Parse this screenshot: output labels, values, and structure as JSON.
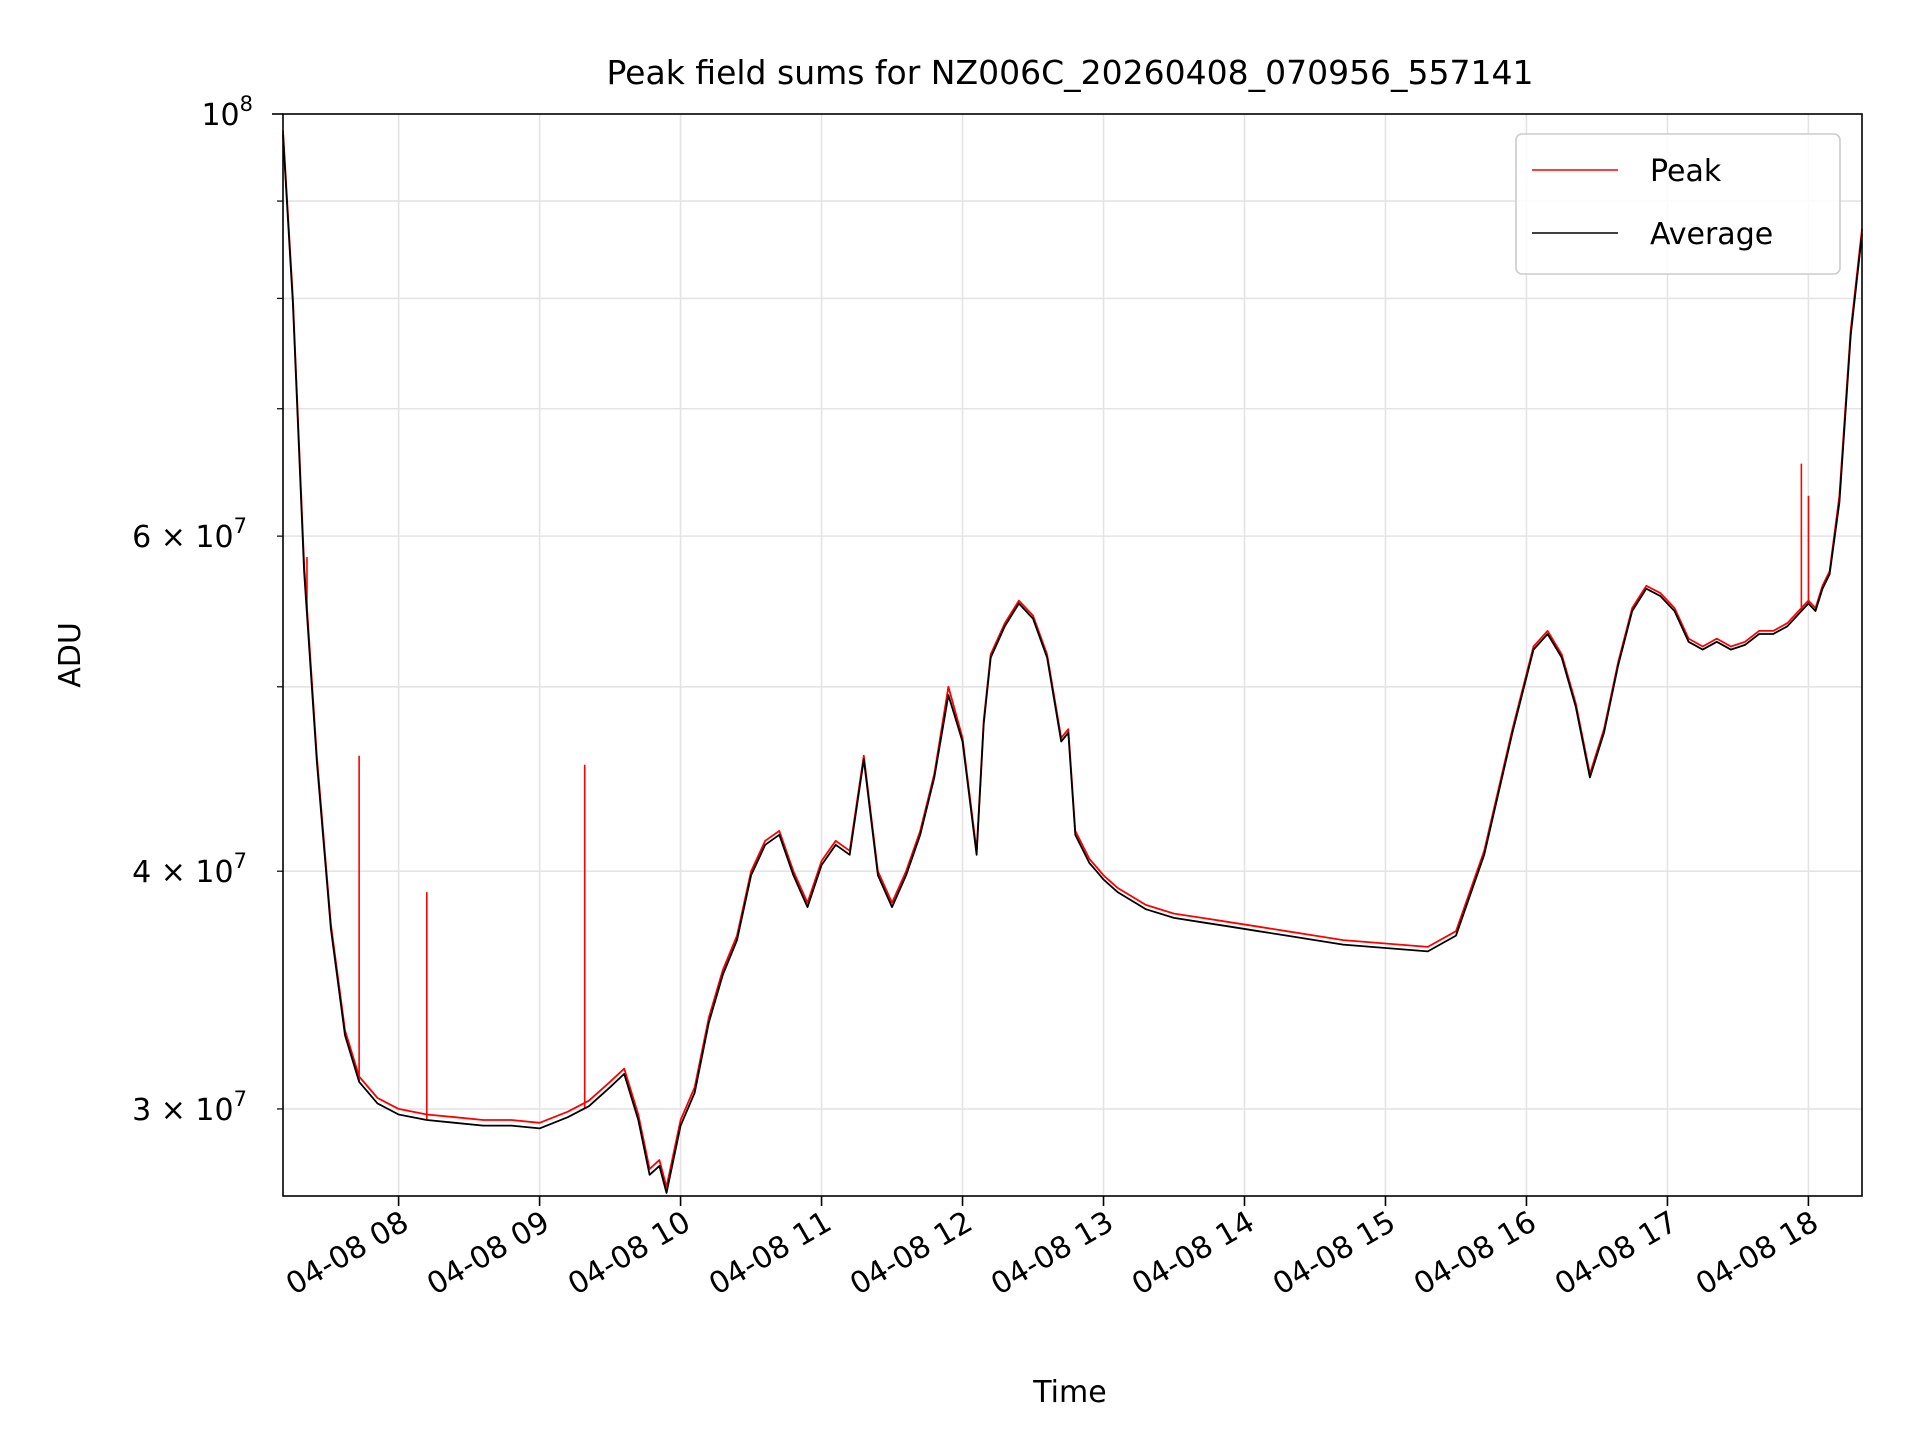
{
  "chart_data": {
    "type": "line",
    "title": "Peak field sums for NZ006C_20260408_070956_557141",
    "xlabel": "Time",
    "ylabel": "ADU",
    "yscale": "log",
    "ylim": [
      27000000,
      100000000
    ],
    "xlim": [
      7.18,
      18.38
    ],
    "grid": true,
    "legend_position": "top-right",
    "x_unit": "hour of day (04-08)",
    "x_ticks": [
      8,
      9,
      10,
      11,
      12,
      13,
      14,
      15,
      16,
      17,
      18
    ],
    "x_tick_labels": [
      "04-08 08",
      "04-08 09",
      "04-08 10",
      "04-08 11",
      "04-08 12",
      "04-08 13",
      "04-08 14",
      "04-08 15",
      "04-08 16",
      "04-08 17",
      "04-08 18"
    ],
    "y_major_ticks": [
      100000000
    ],
    "y_major_tick_base": "10",
    "y_major_tick_exp": "8",
    "y_minor_labeled_ticks": [
      {
        "value": 30000000,
        "mantissa": "3",
        "base": "10",
        "exp": "7"
      },
      {
        "value": 40000000,
        "mantissa": "4",
        "base": "10",
        "exp": "7"
      },
      {
        "value": 60000000,
        "mantissa": "6",
        "base": "10",
        "exp": "7"
      }
    ],
    "y_minor_ticks": [
      30000000,
      40000000,
      50000000,
      60000000,
      70000000,
      80000000,
      90000000
    ],
    "series": [
      {
        "name": "Peak",
        "color": "#ff0000",
        "x": [
          7.18,
          7.25,
          7.33,
          7.42,
          7.52,
          7.62,
          7.72,
          7.85,
          8.0,
          8.2,
          8.4,
          8.6,
          8.8,
          9.0,
          9.2,
          9.35,
          9.5,
          9.6,
          9.7,
          9.78,
          9.85,
          9.9,
          10.0,
          10.1,
          10.2,
          10.3,
          10.4,
          10.5,
          10.6,
          10.7,
          10.8,
          10.9,
          11.0,
          11.1,
          11.2,
          11.3,
          11.4,
          11.5,
          11.6,
          11.7,
          11.8,
          11.9,
          12.0,
          12.1,
          12.15,
          12.2,
          12.3,
          12.4,
          12.5,
          12.6,
          12.7,
          12.75,
          12.8,
          12.9,
          12.95,
          13.0,
          13.1,
          13.2,
          13.3,
          13.5,
          13.7,
          13.9,
          14.1,
          14.3,
          14.5,
          14.7,
          14.9,
          15.1,
          15.3,
          15.5,
          15.7,
          15.9,
          16.05,
          16.15,
          16.25,
          16.35,
          16.45,
          16.55,
          16.65,
          16.75,
          16.85,
          16.95,
          17.05,
          17.15,
          17.25,
          17.35,
          17.45,
          17.55,
          17.65,
          17.75,
          17.85,
          17.95,
          18.0,
          18.05,
          18.1,
          18.15,
          18.22,
          18.3,
          18.38
        ],
        "values": [
          98000000,
          80000000,
          58000000,
          46000000,
          37500000,
          33000000,
          31200000,
          30400000,
          30000000,
          29800000,
          29700000,
          29600000,
          29600000,
          29500000,
          29900000,
          30300000,
          31000000,
          31500000,
          29800000,
          27900000,
          28200000,
          27300000,
          29600000,
          30800000,
          33500000,
          35500000,
          37000000,
          40000000,
          41500000,
          42000000,
          40000000,
          38500000,
          40500000,
          41500000,
          41000000,
          46000000,
          40000000,
          38500000,
          40000000,
          42000000,
          45000000,
          50000000,
          47000000,
          41000000,
          48000000,
          52000000,
          54000000,
          55500000,
          54500000,
          52000000,
          47000000,
          47500000,
          42000000,
          40600000,
          40200000,
          39800000,
          39200000,
          38800000,
          38400000,
          38000000,
          37800000,
          37600000,
          37400000,
          37200000,
          37000000,
          36800000,
          36700000,
          36600000,
          36500000,
          37200000,
          41000000,
          47500000,
          52500000,
          53500000,
          52000000,
          49000000,
          45000000,
          47500000,
          51500000,
          55000000,
          56500000,
          56000000,
          55000000,
          53000000,
          52500000,
          53000000,
          52500000,
          52800000,
          53500000,
          53500000,
          54000000,
          55000000,
          55500000,
          55000000,
          56500000,
          57500000,
          63000000,
          77000000,
          87000000
        ],
        "spikes": [
          {
            "x": 7.35,
            "value": 58500000
          },
          {
            "x": 7.72,
            "value": 46000000
          },
          {
            "x": 8.2,
            "value": 39000000
          },
          {
            "x": 9.32,
            "value": 45500000
          },
          {
            "x": 17.95,
            "value": 65500000
          },
          {
            "x": 18.0,
            "value": 63000000
          }
        ]
      },
      {
        "name": "Average",
        "color": "#000000",
        "x": [
          7.18,
          7.25,
          7.33,
          7.42,
          7.52,
          7.62,
          7.72,
          7.85,
          8.0,
          8.2,
          8.4,
          8.6,
          8.8,
          9.0,
          9.2,
          9.35,
          9.5,
          9.6,
          9.7,
          9.78,
          9.85,
          9.9,
          10.0,
          10.1,
          10.2,
          10.3,
          10.4,
          10.5,
          10.6,
          10.7,
          10.8,
          10.9,
          11.0,
          11.1,
          11.2,
          11.3,
          11.4,
          11.5,
          11.6,
          11.7,
          11.8,
          11.9,
          12.0,
          12.1,
          12.15,
          12.2,
          12.3,
          12.4,
          12.5,
          12.6,
          12.7,
          12.75,
          12.8,
          12.9,
          12.95,
          13.0,
          13.1,
          13.2,
          13.3,
          13.5,
          13.7,
          13.9,
          14.1,
          14.3,
          14.5,
          14.7,
          14.9,
          15.1,
          15.3,
          15.5,
          15.7,
          15.9,
          16.05,
          16.15,
          16.25,
          16.35,
          16.45,
          16.55,
          16.65,
          16.75,
          16.85,
          16.95,
          17.05,
          17.15,
          17.25,
          17.35,
          17.45,
          17.55,
          17.65,
          17.75,
          17.85,
          17.95,
          18.0,
          18.05,
          18.1,
          18.15,
          18.22,
          18.3,
          18.38
        ],
        "values": [
          97500000,
          79500000,
          57500000,
          45700000,
          37300000,
          32800000,
          31000000,
          30200000,
          29800000,
          29600000,
          29500000,
          29400000,
          29400000,
          29300000,
          29700000,
          30100000,
          30800000,
          31300000,
          29600000,
          27700000,
          28000000,
          27100000,
          29400000,
          30600000,
          33300000,
          35300000,
          36800000,
          39800000,
          41300000,
          41800000,
          39800000,
          38300000,
          40300000,
          41300000,
          40800000,
          45800000,
          39800000,
          38300000,
          39800000,
          41800000,
          44800000,
          49500000,
          46800000,
          40800000,
          47800000,
          51800000,
          53800000,
          55300000,
          54300000,
          51800000,
          46800000,
          47300000,
          41800000,
          40400000,
          40000000,
          39600000,
          39000000,
          38600000,
          38200000,
          37800000,
          37600000,
          37400000,
          37200000,
          37000000,
          36800000,
          36600000,
          36500000,
          36400000,
          36300000,
          37000000,
          40800000,
          47300000,
          52300000,
          53300000,
          51800000,
          48800000,
          44800000,
          47300000,
          51300000,
          54800000,
          56300000,
          55800000,
          54800000,
          52800000,
          52300000,
          52800000,
          52300000,
          52600000,
          53300000,
          53300000,
          53800000,
          54800000,
          55300000,
          54800000,
          56300000,
          57300000,
          62500000,
          76500000,
          86500000
        ]
      }
    ]
  }
}
